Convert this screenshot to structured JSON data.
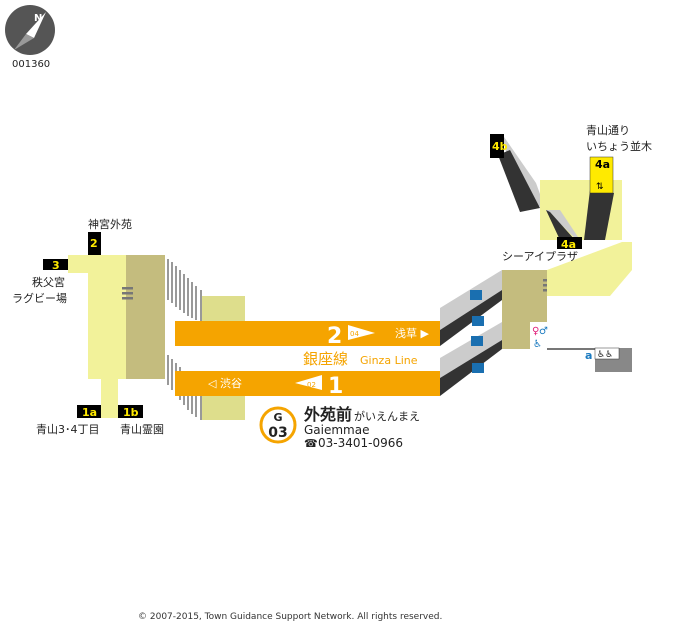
{
  "map_id": "001360",
  "colors": {
    "line": "#f5a400",
    "concourse": "#f2f29a",
    "stairs_block": "#c4bc7e",
    "platform_end": "#dede8c",
    "exit_bg": "#000000",
    "exit_text": "#ffea00"
  },
  "compass": {
    "icon": "compass-north-icon",
    "label": "N"
  },
  "exits": [
    {
      "id": "2",
      "dest": "神宮外苑"
    },
    {
      "id": "3",
      "dest": "秩父宮\nラグビー場",
      "dest_lines": [
        "秩父宮",
        "ラグビー場"
      ]
    },
    {
      "id": "1a",
      "dest": "青山3･4丁目"
    },
    {
      "id": "1b",
      "dest": "青山霊園"
    },
    {
      "id": "4b",
      "dest": ""
    },
    {
      "id": "4a",
      "dest": "青山通り いちょう並木",
      "dest_lines": [
        "青山通り",
        "いちょう並木"
      ]
    },
    {
      "id": "4a_lower",
      "label": "4a",
      "dest": "シーアイプラザ"
    }
  ],
  "platforms": {
    "top": {
      "track": "2",
      "station_code": "04",
      "direction": "浅草 ▶"
    },
    "bottom": {
      "track": "1",
      "station_code": "02",
      "direction": "◁ 渋谷"
    }
  },
  "line": {
    "name_ja": "銀座線",
    "name_en": "Ginza Line"
  },
  "station": {
    "line_letter": "G",
    "number": "03",
    "name_ja": "外苑前",
    "name_kana": "がいえんまえ",
    "name_en": "Gaiemmae",
    "phone_icon": "phone-icon",
    "phone": "03-3401-0966"
  },
  "facilities": {
    "elevator_icon": "elevator-icon",
    "toilet_icon": "toilet-icon",
    "escalator_icon": "escalator-icon",
    "accessible_label": "a"
  },
  "copyright": "© 2007-2015, Town Guidance Support Network. All rights reserved."
}
